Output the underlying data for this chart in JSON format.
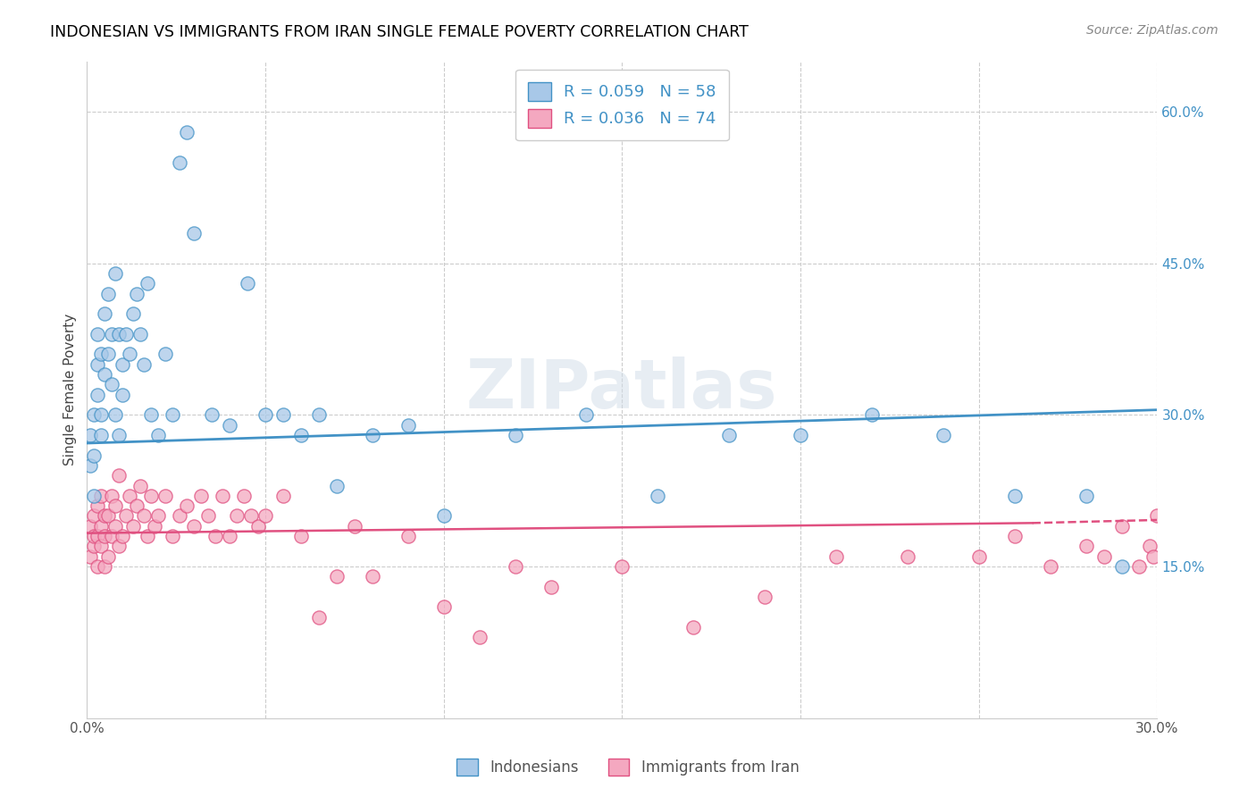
{
  "title": "INDONESIAN VS IMMIGRANTS FROM IRAN SINGLE FEMALE POVERTY CORRELATION CHART",
  "source": "Source: ZipAtlas.com",
  "ylabel": "Single Female Poverty",
  "xlim": [
    0.0,
    0.3
  ],
  "ylim": [
    0.0,
    0.65
  ],
  "x_tick_positions": [
    0.0,
    0.05,
    0.1,
    0.15,
    0.2,
    0.25,
    0.3
  ],
  "x_tick_labels": [
    "0.0%",
    "",
    "",
    "",
    "",
    "",
    "30.0%"
  ],
  "y_ticks_right": [
    0.15,
    0.3,
    0.45,
    0.6
  ],
  "y_tick_labels_right": [
    "15.0%",
    "30.0%",
    "45.0%",
    "60.0%"
  ],
  "blue_fill": "#a8c8e8",
  "blue_edge": "#4292c6",
  "pink_fill": "#f4a8c0",
  "pink_edge": "#e05080",
  "blue_line_color": "#4292c6",
  "pink_line_color": "#e05080",
  "watermark": "ZIPatlas",
  "legend_label1": "Indonesians",
  "legend_label2": "Immigrants from Iran",
  "legend_R1": "R = 0.059",
  "legend_N1": "N = 58",
  "legend_R2": "R = 0.036",
  "legend_N2": "N = 74",
  "indonesian_x": [
    0.001,
    0.001,
    0.002,
    0.002,
    0.002,
    0.003,
    0.003,
    0.003,
    0.004,
    0.004,
    0.004,
    0.005,
    0.005,
    0.006,
    0.006,
    0.007,
    0.007,
    0.008,
    0.008,
    0.009,
    0.009,
    0.01,
    0.01,
    0.011,
    0.012,
    0.013,
    0.014,
    0.015,
    0.016,
    0.017,
    0.018,
    0.02,
    0.022,
    0.024,
    0.026,
    0.028,
    0.03,
    0.035,
    0.04,
    0.045,
    0.05,
    0.055,
    0.06,
    0.065,
    0.07,
    0.08,
    0.09,
    0.1,
    0.12,
    0.14,
    0.16,
    0.18,
    0.2,
    0.22,
    0.24,
    0.26,
    0.28,
    0.29
  ],
  "indonesian_y": [
    0.28,
    0.25,
    0.3,
    0.26,
    0.22,
    0.35,
    0.38,
    0.32,
    0.36,
    0.3,
    0.28,
    0.34,
    0.4,
    0.42,
    0.36,
    0.38,
    0.33,
    0.44,
    0.3,
    0.38,
    0.28,
    0.35,
    0.32,
    0.38,
    0.36,
    0.4,
    0.42,
    0.38,
    0.35,
    0.43,
    0.3,
    0.28,
    0.36,
    0.3,
    0.55,
    0.58,
    0.48,
    0.3,
    0.29,
    0.43,
    0.3,
    0.3,
    0.28,
    0.3,
    0.23,
    0.28,
    0.29,
    0.2,
    0.28,
    0.3,
    0.22,
    0.28,
    0.28,
    0.3,
    0.28,
    0.22,
    0.22,
    0.15
  ],
  "iran_x": [
    0.001,
    0.001,
    0.002,
    0.002,
    0.002,
    0.003,
    0.003,
    0.003,
    0.004,
    0.004,
    0.004,
    0.005,
    0.005,
    0.005,
    0.006,
    0.006,
    0.007,
    0.007,
    0.008,
    0.008,
    0.009,
    0.009,
    0.01,
    0.011,
    0.012,
    0.013,
    0.014,
    0.015,
    0.016,
    0.017,
    0.018,
    0.019,
    0.02,
    0.022,
    0.024,
    0.026,
    0.028,
    0.03,
    0.032,
    0.034,
    0.036,
    0.038,
    0.04,
    0.042,
    0.044,
    0.046,
    0.048,
    0.05,
    0.055,
    0.06,
    0.065,
    0.07,
    0.075,
    0.08,
    0.09,
    0.1,
    0.11,
    0.12,
    0.13,
    0.15,
    0.17,
    0.19,
    0.21,
    0.23,
    0.25,
    0.26,
    0.27,
    0.28,
    0.285,
    0.29,
    0.295,
    0.298,
    0.299,
    0.3
  ],
  "iran_y": [
    0.19,
    0.16,
    0.2,
    0.17,
    0.18,
    0.18,
    0.21,
    0.15,
    0.19,
    0.17,
    0.22,
    0.18,
    0.2,
    0.15,
    0.16,
    0.2,
    0.18,
    0.22,
    0.19,
    0.21,
    0.17,
    0.24,
    0.18,
    0.2,
    0.22,
    0.19,
    0.21,
    0.23,
    0.2,
    0.18,
    0.22,
    0.19,
    0.2,
    0.22,
    0.18,
    0.2,
    0.21,
    0.19,
    0.22,
    0.2,
    0.18,
    0.22,
    0.18,
    0.2,
    0.22,
    0.2,
    0.19,
    0.2,
    0.22,
    0.18,
    0.1,
    0.14,
    0.19,
    0.14,
    0.18,
    0.11,
    0.08,
    0.15,
    0.13,
    0.15,
    0.09,
    0.12,
    0.16,
    0.16,
    0.16,
    0.18,
    0.15,
    0.17,
    0.16,
    0.19,
    0.15,
    0.17,
    0.16,
    0.2
  ]
}
